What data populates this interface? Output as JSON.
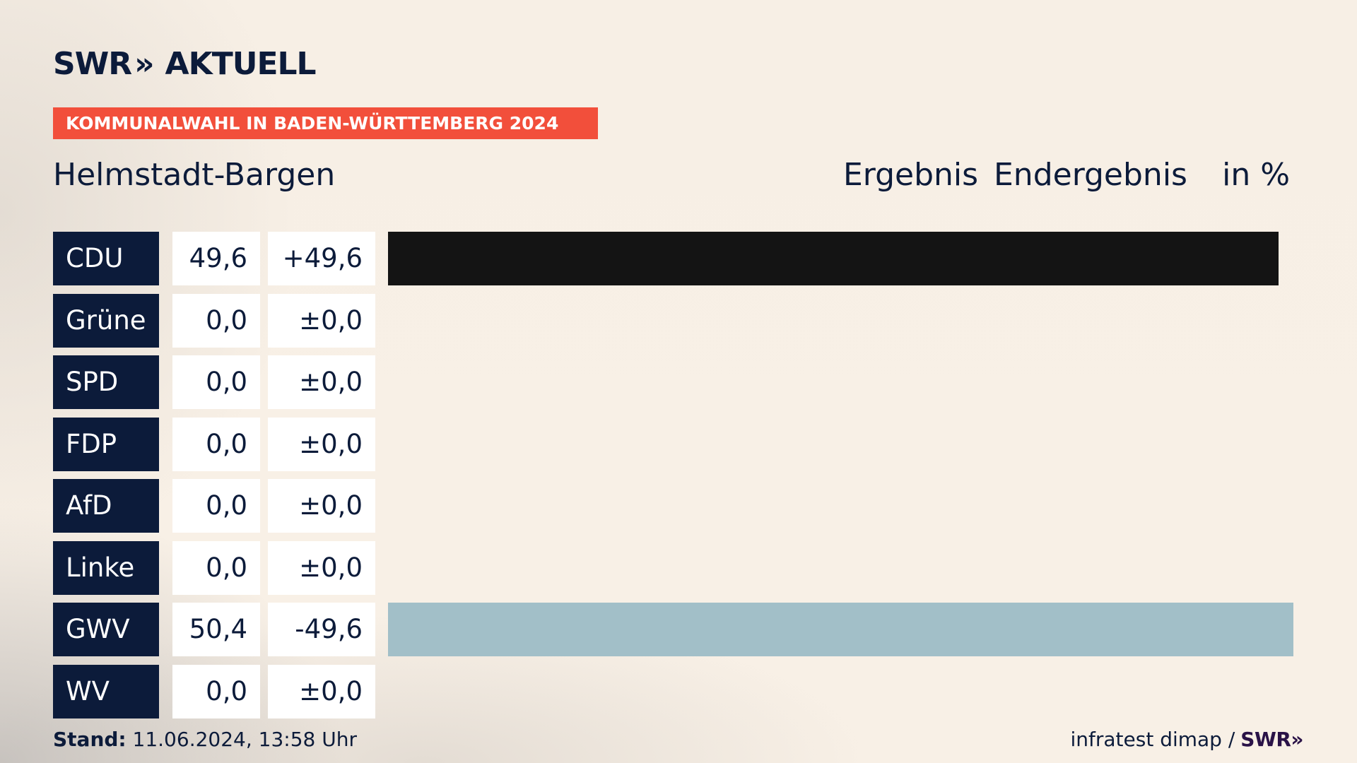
{
  "brand": {
    "logo_text": "SWR",
    "logo_chevrons": "»",
    "logo_suffix": "AKTUELL"
  },
  "banner": {
    "text": "KOMMUNALWAHL IN BADEN-WÜRTTEMBERG 2024",
    "color": "#f24f3b"
  },
  "place": "Helmstadt-Bargen",
  "headers": {
    "ergebnis": "Ergebnis",
    "endergebnis": "Endergebnis",
    "unit": "in %"
  },
  "chart_data": {
    "type": "bar",
    "orientation": "horizontal",
    "title": "Helmstadt-Bargen",
    "categories": [
      "CDU",
      "Grüne",
      "SPD",
      "FDP",
      "AfD",
      "Linke",
      "GWV",
      "WV"
    ],
    "values": [
      49.6,
      0.0,
      0.0,
      0.0,
      0.0,
      0.0,
      50.4,
      0.0
    ],
    "value_labels": [
      "49,6",
      "0,0",
      "0,0",
      "0,0",
      "0,0",
      "0,0",
      "50,4",
      "0,0"
    ],
    "diff_labels": [
      "+49,6",
      "±0,0",
      "±0,0",
      "±0,0",
      "±0,0",
      "±0,0",
      "-49,6",
      "±0,0"
    ],
    "colors": [
      "#141414",
      "#1aa037",
      "#e3000f",
      "#ffed00",
      "#009ee0",
      "#be3075",
      "#a2bfc8",
      "#a2bfc8"
    ],
    "xlim": [
      0,
      51
    ]
  },
  "footer": {
    "stand_label": "Stand:",
    "stand_value": "11.06.2024, 13:58 Uhr",
    "source": "infratest dimap /",
    "source_brand": "SWR»"
  }
}
